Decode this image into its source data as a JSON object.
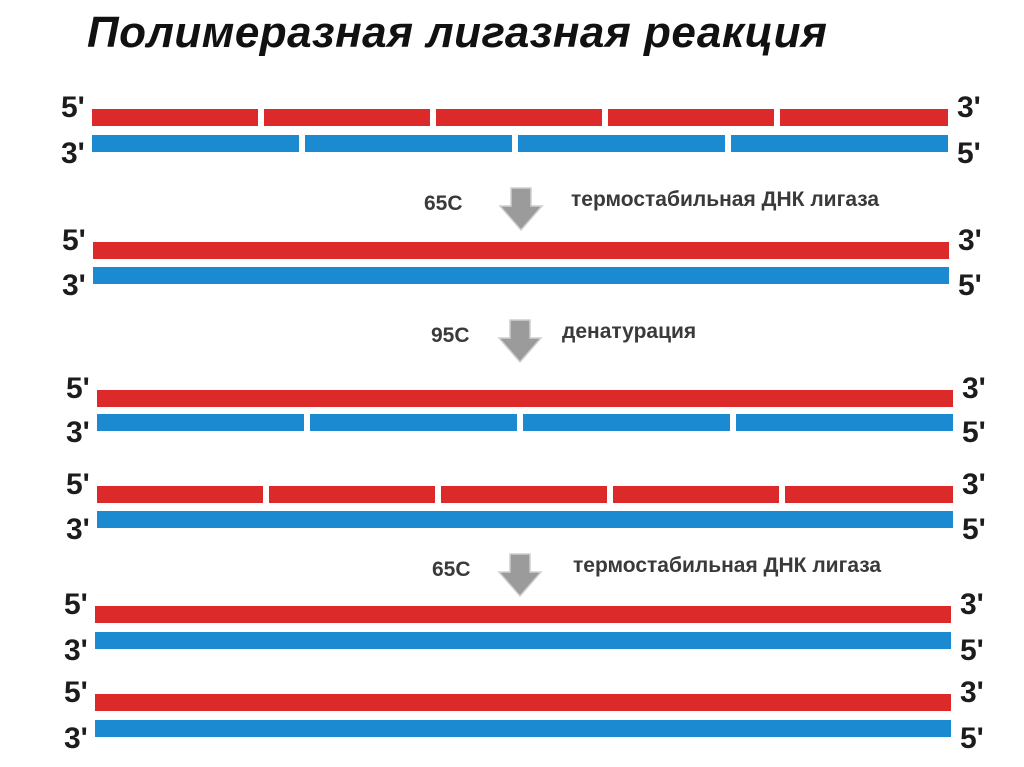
{
  "title": "Полимеразная лигазная реакция",
  "colors": {
    "red": "#dc2a2a",
    "blue": "#1b8ad0",
    "arrow": "#9b9b9b",
    "arrow_edge": "#ffffff"
  },
  "end_labels": {
    "five": "5'",
    "three": "3'"
  },
  "steps": [
    {
      "temperature": "65С",
      "description": "термостабильная ДНК лигаза"
    },
    {
      "temperature": "95С",
      "description": "денатурация"
    },
    {
      "temperature": "65С",
      "description": "термостабильная ДНК лигаза"
    }
  ],
  "duplexes": [
    {
      "top_fragments": 5,
      "bottom_fragments": 4
    },
    {
      "top_fragments": 1,
      "bottom_fragments": 1
    },
    {
      "top_fragments": 1,
      "bottom_fragments": 4
    },
    {
      "top_fragments": 5,
      "bottom_fragments": 1
    },
    {
      "top_fragments": 1,
      "bottom_fragments": 1
    },
    {
      "top_fragments": 1,
      "bottom_fragments": 1
    }
  ]
}
